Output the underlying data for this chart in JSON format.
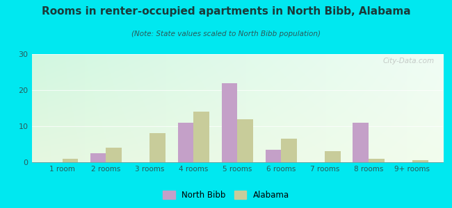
{
  "categories": [
    "1 room",
    "2 rooms",
    "3 rooms",
    "4 rooms",
    "5 rooms",
    "6 rooms",
    "7 rooms",
    "8 rooms",
    "9+ rooms"
  ],
  "north_bibb": [
    0,
    2.5,
    0,
    11,
    22,
    3.5,
    0,
    11,
    0
  ],
  "alabama": [
    1,
    4,
    8,
    14,
    12,
    6.5,
    3,
    1,
    0.5
  ],
  "north_bibb_color": "#c4a0c8",
  "alabama_color": "#c8cc9a",
  "title": "Rooms in renter-occupied apartments in North Bibb, Alabama",
  "subtitle": "(Note: State values scaled to North Bibb population)",
  "bg_color": "#00e8f0",
  "ylim": [
    0,
    30
  ],
  "yticks": [
    0,
    10,
    20,
    30
  ],
  "bar_width": 0.36,
  "legend_north_bibb": "North Bibb",
  "legend_alabama": "Alabama",
  "title_color": "#1a3a3a",
  "subtitle_color": "#2a5a5a",
  "tick_color": "#2a5a5a"
}
